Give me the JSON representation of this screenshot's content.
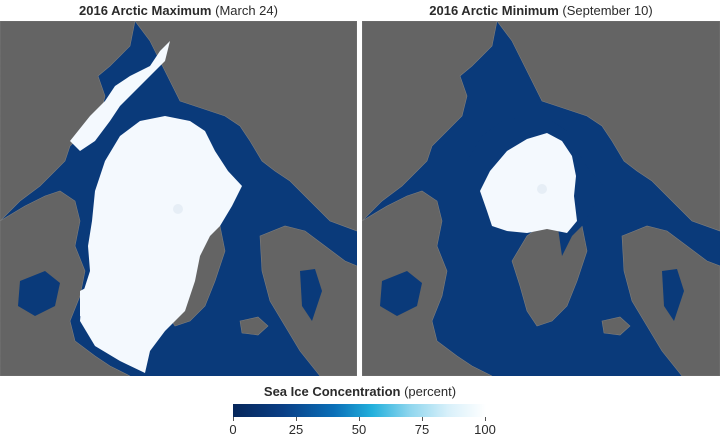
{
  "panels": [
    {
      "title_bold": "2016 Arctic Maximum",
      "title_rest": " (March 24)"
    },
    {
      "title_bold": "2016 Arctic Minimum",
      "title_rest": " (September 10)"
    }
  ],
  "legend": {
    "title_bold": "Sea Ice Concentration",
    "title_rest": " (percent)",
    "ticks": [
      "0",
      "25",
      "50",
      "75",
      "100"
    ]
  },
  "colors": {
    "ocean": "#0a3a7a",
    "land": "#646464",
    "sea_ice": "#f4f9fe",
    "border": "#7d7d7d"
  }
}
